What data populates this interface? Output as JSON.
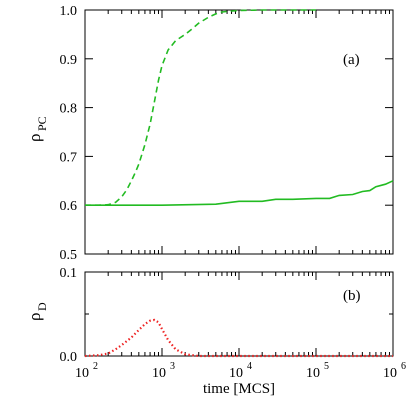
{
  "chart_data": [
    {
      "type": "line",
      "panel": "(a)",
      "ylabel": "ρ",
      "ylabel_sub": "PC",
      "xscale": "log",
      "xlim": [
        100,
        1000000
      ],
      "ylim": [
        0.5,
        1.0
      ],
      "yticks": [
        "0.5",
        "0.6",
        "0.7",
        "0.8",
        "0.9",
        "1.0"
      ],
      "grid": false,
      "series": [
        {
          "style": "dashed",
          "color": "#22bb22",
          "x": [
            100,
            150,
            200,
            250,
            300,
            350,
            400,
            450,
            500,
            550,
            600,
            700,
            800,
            900,
            1000,
            1200,
            1500,
            2000,
            2500,
            3000,
            4000,
            5000,
            6000,
            8000,
            10000,
            20000,
            50000,
            100000
          ],
          "y": [
            0.6,
            0.6,
            0.601,
            0.606,
            0.617,
            0.632,
            0.65,
            0.667,
            0.684,
            0.705,
            0.724,
            0.766,
            0.813,
            0.856,
            0.886,
            0.918,
            0.937,
            0.95,
            0.962,
            0.973,
            0.985,
            0.992,
            0.996,
            0.998,
            0.999,
            1.0,
            1.0,
            1.0
          ]
        },
        {
          "style": "solid",
          "color": "#22bb22",
          "x": [
            100,
            1000,
            5000,
            10000,
            20000,
            30000,
            50000,
            100000,
            150000,
            200000,
            300000,
            400000,
            500000,
            600000,
            800000,
            1000000
          ],
          "y": [
            0.6,
            0.6,
            0.602,
            0.608,
            0.608,
            0.612,
            0.612,
            0.614,
            0.614,
            0.62,
            0.622,
            0.628,
            0.63,
            0.638,
            0.643,
            0.65
          ]
        }
      ]
    },
    {
      "type": "line",
      "panel": "(b)",
      "ylabel": "ρ",
      "ylabel_sub": "D",
      "xlabel": "time [MCS]",
      "xscale": "log",
      "xlim": [
        100,
        1000000
      ],
      "ylim": [
        0.0,
        0.1
      ],
      "yticks": [
        "0.0",
        "0.1"
      ],
      "xticks": [
        {
          "base": "10",
          "exp": "2"
        },
        {
          "base": "10",
          "exp": "3"
        },
        {
          "base": "10",
          "exp": "4"
        },
        {
          "base": "10",
          "exp": "5"
        },
        {
          "base": "10",
          "exp": "6"
        }
      ],
      "grid": false,
      "series": [
        {
          "style": "dotted",
          "color": "#ee2222",
          "x": [
            100,
            150,
            200,
            250,
            300,
            400,
            500,
            600,
            700,
            800,
            900,
            1000,
            1200,
            1500,
            2000,
            3000,
            5000,
            10000,
            1000000
          ],
          "y": [
            0.0,
            0.001,
            0.003,
            0.008,
            0.013,
            0.022,
            0.031,
            0.038,
            0.042,
            0.043,
            0.04,
            0.032,
            0.019,
            0.008,
            0.002,
            0.0,
            0.0,
            0.0,
            0.0
          ]
        }
      ]
    }
  ]
}
